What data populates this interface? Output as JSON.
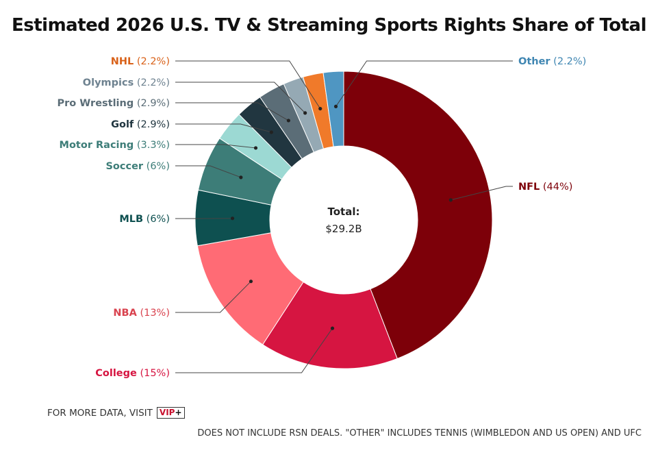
{
  "chart_data": {
    "type": "pie",
    "title": "Estimated 2026 U.S. TV & Streaming Sports Rights Share of Total",
    "center_label": "Total:",
    "center_value": "$29.2B",
    "slices": [
      {
        "name": "NFL",
        "value": 44,
        "label": "(44%)",
        "color": "#7d0009",
        "text_color": "#7d0009"
      },
      {
        "name": "College",
        "value": 15,
        "label": "(15%)",
        "color": "#d61541",
        "text_color": "#d61541"
      },
      {
        "name": "NBA",
        "value": 13,
        "label": "(13%)",
        "color": "#ff6b75",
        "text_color": "#d9434f"
      },
      {
        "name": "MLB",
        "value": 6,
        "label": "(6%)",
        "color": "#0e5050",
        "text_color": "#0e5050"
      },
      {
        "name": "Soccer",
        "value": 6,
        "label": "(6%)",
        "color": "#3d7d78",
        "text_color": "#3d7d78"
      },
      {
        "name": "Motor Racing",
        "value": 3.3,
        "label": "(3.3%)",
        "color": "#9cd9d3",
        "text_color": "#3d7d78"
      },
      {
        "name": "Golf",
        "value": 2.9,
        "label": "(2.9%)",
        "color": "#213640",
        "text_color": "#213640"
      },
      {
        "name": "Pro Wrestling",
        "value": 2.9,
        "label": "(2.9%)",
        "color": "#5b6d77",
        "text_color": "#5b6d77"
      },
      {
        "name": "Olympics",
        "value": 2.2,
        "label": "(2.2%)",
        "color": "#95a9b4",
        "text_color": "#6e8290"
      },
      {
        "name": "NHL",
        "value": 2.2,
        "label": "(2.2%)",
        "color": "#f07a2a",
        "text_color": "#d9621a"
      },
      {
        "name": "Other",
        "value": 2.2,
        "label": "(2.2%)",
        "color": "#4f96c2",
        "text_color": "#3f86b2"
      }
    ]
  },
  "footer": {
    "more_data_text": "FOR MORE DATA, VISIT",
    "badge_text": "VIP",
    "badge_plus": "+",
    "note": "DOES NOT INCLUDE RSN DEALS. \"OTHER\" INCLUDES TENNIS (WIMBLEDON AND US OPEN) AND UFC"
  }
}
